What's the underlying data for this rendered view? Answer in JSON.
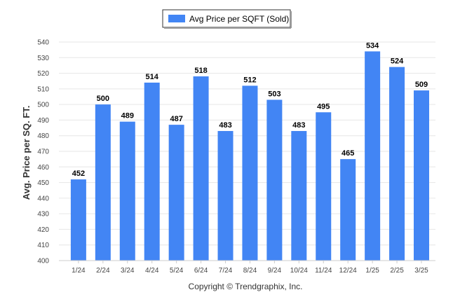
{
  "chart_data": {
    "type": "bar",
    "categories": [
      "1/24",
      "2/24",
      "3/24",
      "4/24",
      "5/24",
      "6/24",
      "7/24",
      "8/24",
      "9/24",
      "10/24",
      "11/24",
      "12/24",
      "1/25",
      "2/25",
      "3/25"
    ],
    "series": [
      {
        "name": "Avg Price per SQFT (Sold)",
        "values": [
          452,
          500,
          489,
          514,
          487,
          518,
          483,
          512,
          503,
          483,
          495,
          465,
          534,
          524,
          509
        ]
      }
    ],
    "ylabel": "Avg. Price per SQ. FT.",
    "xlabel": "",
    "ylim": [
      400,
      540
    ],
    "yticks": [
      400,
      410,
      420,
      430,
      440,
      450,
      460,
      470,
      480,
      490,
      500,
      510,
      520,
      530,
      540
    ],
    "grid": true,
    "legend_position": "top-center",
    "bar_color": "#4285f4"
  },
  "footer": {
    "copyright": "Copyright © Trendgraphix, Inc."
  }
}
